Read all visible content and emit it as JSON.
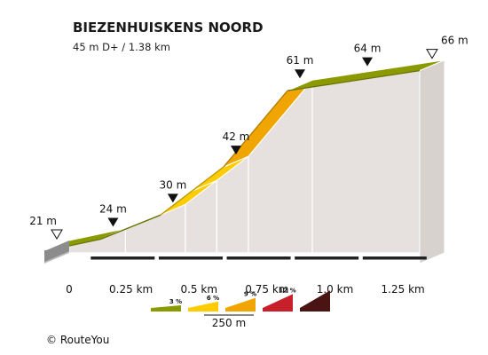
{
  "chart_data": {
    "type": "area",
    "title": "BIEZENHUISKENS NOORD",
    "subtitle": "45 m D+ / 1.38 km",
    "xunit": "km",
    "yunit": "m",
    "points": [
      {
        "km": 0.0,
        "elev": 21,
        "label": "21 m",
        "marker": "start"
      },
      {
        "km": 0.207,
        "elev": 24,
        "label": "24 m",
        "marker": "peak"
      },
      {
        "km": 0.427,
        "elev": 30,
        "label": "30 m",
        "marker": "peak"
      },
      {
        "km": 0.659,
        "elev": 42,
        "label": "42 m",
        "marker": "peak"
      },
      {
        "km": 0.894,
        "elev": 61,
        "label": "61 m",
        "marker": "peak"
      },
      {
        "km": 1.142,
        "elev": 64,
        "label": "64 m",
        "marker": "peak"
      },
      {
        "km": 1.38,
        "elev": 66,
        "label": "66 m",
        "marker": "end"
      }
    ],
    "segments": [
      {
        "from_km": 0.0,
        "to_km": 0.207,
        "grade_class": "3"
      },
      {
        "from_km": 0.207,
        "to_km": 0.427,
        "grade_class": "3"
      },
      {
        "from_km": 0.427,
        "to_km": 0.543,
        "grade_class": "6"
      },
      {
        "from_km": 0.543,
        "to_km": 0.659,
        "grade_class": "6"
      },
      {
        "from_km": 0.659,
        "to_km": 0.894,
        "grade_class": "9"
      },
      {
        "from_km": 0.894,
        "to_km": 1.38,
        "grade_class": "3"
      }
    ],
    "x_ticks": [
      {
        "km": 0,
        "label": "0"
      },
      {
        "km": 0.25,
        "label": "0.25 km"
      },
      {
        "km": 0.5,
        "label": "0.5 km"
      },
      {
        "km": 0.75,
        "label": "0.75 km"
      },
      {
        "km": 1.0,
        "label": "1.0 km"
      },
      {
        "km": 1.25,
        "label": "1.25 km"
      }
    ],
    "legend": {
      "items": [
        {
          "label": "3 %",
          "color": "#8a9a00"
        },
        {
          "label": "6 %",
          "color": "#ffcc00"
        },
        {
          "label": "9 %",
          "color": "#f0a500"
        },
        {
          "label": "12 %",
          "color": "#c8202a"
        },
        {
          "label": "",
          "color": "#4a1414"
        }
      ],
      "scale_label": "250 m"
    },
    "colors": {
      "3": "#8a9a00",
      "6": "#ffcc00",
      "9": "#f0a500",
      "wall": "#e6e1de",
      "base_front": "#6b6b6b"
    }
  },
  "footer": {
    "copyright": "©  RouteYou"
  }
}
